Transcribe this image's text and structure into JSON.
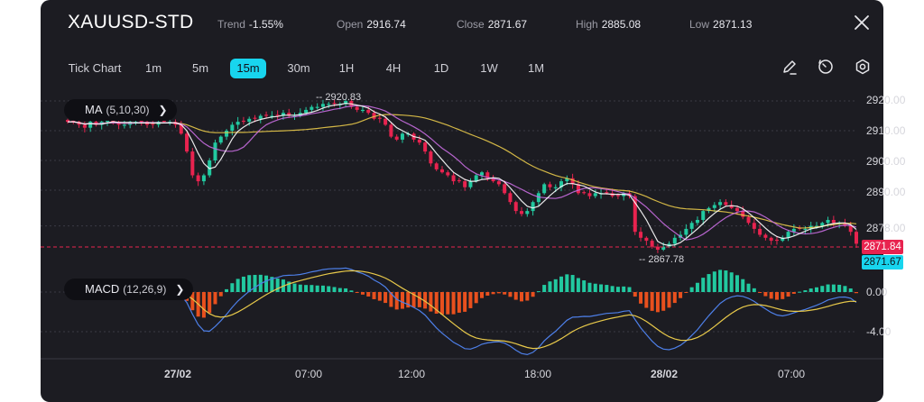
{
  "header": {
    "symbol": "XAUUSD-STD",
    "stats": [
      {
        "label": "Trend",
        "value": "-1.55%"
      },
      {
        "label": "Open",
        "value": "2916.74"
      },
      {
        "label": "Close",
        "value": "2871.67"
      },
      {
        "label": "High",
        "value": "2885.08"
      },
      {
        "label": "Low",
        "value": "2871.13"
      }
    ],
    "close_icon": "close-icon"
  },
  "timeframes": {
    "items": [
      "Tick Chart",
      "1m",
      "5m",
      "15m",
      "30m",
      "1H",
      "4H",
      "1D",
      "1W",
      "1M"
    ],
    "selected": "15m"
  },
  "toolbar": {
    "icons": [
      "draw-icon",
      "clock-icon",
      "settings-icon"
    ]
  },
  "indicators": {
    "ma": {
      "name": "MA",
      "params": "(5,10,30)"
    },
    "macd": {
      "name": "MACD",
      "params": "(12,26,9)"
    }
  },
  "price_axis": {
    "labels": [
      "2920.00",
      "2910.00",
      "2900.00",
      "2890.00",
      "2878.00"
    ]
  },
  "price_tags": {
    "bid": "2871.84",
    "last": "2871.67"
  },
  "annotations": {
    "high": "2920.83",
    "low": "2867.78"
  },
  "macd_axis": {
    "labels": [
      "0.00",
      "-4.00"
    ]
  },
  "time_axis": {
    "labels": [
      "27/02",
      "07:00",
      "12:00",
      "18:00",
      "28/02",
      "07:00"
    ],
    "bold": [
      "27/02",
      "28/02"
    ]
  },
  "colors": {
    "up": "#22c9a0",
    "down": "#e8234f",
    "ma5": "#ffffff",
    "ma10": "#c86de0",
    "ma30": "#e8c94a",
    "macd_line": "#4d7fe8",
    "signal_line": "#e8c94a",
    "hist_up": "#22c9a0",
    "hist_down": "#e8501e",
    "accent": "#18d5ee"
  },
  "chart_data": {
    "type": "candlestick",
    "close": [
      2913,
      2913,
      2912,
      2911,
      2913,
      2912,
      2913,
      2914,
      2913,
      2912,
      2912,
      2913,
      2913,
      2913,
      2912,
      2912,
      2913,
      2913,
      2913,
      2912,
      2909,
      2903,
      2895,
      2893,
      2895,
      2900,
      2906,
      2908,
      2910,
      2912,
      2913,
      2913,
      2914,
      2914,
      2915,
      2915,
      2915,
      2915,
      2916,
      2915,
      2915,
      2916,
      2917,
      2918,
      2918,
      2919,
      2919,
      2919,
      2919,
      2920,
      2918,
      2917,
      2917,
      2916,
      2914,
      2914,
      2912,
      2908,
      2907,
      2909,
      2909,
      2907,
      2906,
      2903,
      2899,
      2897,
      2896,
      2895,
      2893,
      2893,
      2891,
      2893,
      2895,
      2896,
      2894,
      2893,
      2892,
      2889,
      2886,
      2883,
      2882,
      2883,
      2886,
      2889,
      2892,
      2891,
      2891,
      2893,
      2894,
      2892,
      2889,
      2889,
      2888,
      2889,
      2889,
      2889,
      2888,
      2888,
      2889,
      2888,
      2876,
      2874,
      2873,
      2871,
      2870,
      2871,
      2872,
      2874,
      2875,
      2877,
      2879,
      2880,
      2883,
      2884,
      2885,
      2886,
      2885,
      2884,
      2883,
      2881,
      2879,
      2877,
      2875,
      2874,
      2873,
      2873,
      2874,
      2876,
      2877,
      2877,
      2877,
      2878,
      2878,
      2879,
      2880,
      2879,
      2879,
      2878,
      2876,
      2872
    ],
    "ma_periods": [
      5,
      10,
      30
    ],
    "macd": {
      "params": [
        12,
        26,
        9
      ],
      "y_range": [
        -6.5,
        2.5
      ]
    },
    "y_range": [
      2864,
      2924
    ],
    "x_ticks": [
      "27/02",
      "07:00",
      "12:00",
      "18:00",
      "28/02",
      "07:00"
    ],
    "high": 2920.83,
    "low": 2867.78,
    "last": 2871.67
  }
}
